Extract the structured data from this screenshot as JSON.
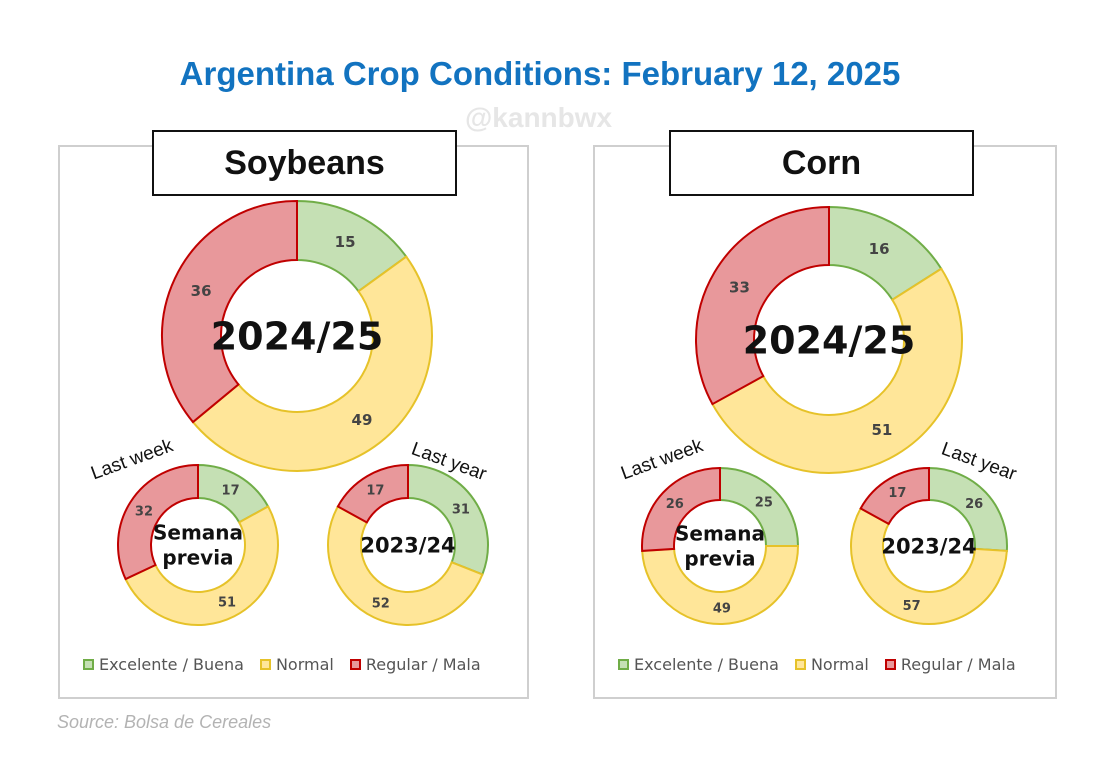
{
  "title": "Argentina Crop Conditions: February 12, 2025",
  "watermark": "@kannbwx",
  "source": "Source: Bolsa de Cereales",
  "colors": {
    "excellent_fill": "#c5e0b4",
    "excellent_stroke": "#70ad47",
    "normal_fill": "#ffe699",
    "normal_stroke": "#e6c229",
    "poor_fill": "#e8989b",
    "poor_stroke": "#c00000"
  },
  "legend": [
    "Excelente / Buena",
    "Normal",
    "Regular / Mala"
  ],
  "panels": {
    "soybeans": {
      "title": "Soybeans"
    },
    "corn": {
      "title": "Corn"
    }
  },
  "chart_data": [
    {
      "type": "pie",
      "crop": "Soybeans",
      "center_label": "2024/25",
      "categories": [
        "Excelente / Buena",
        "Normal",
        "Regular / Mala"
      ],
      "values": [
        15,
        49,
        36
      ]
    },
    {
      "type": "pie",
      "crop": "Soybeans",
      "center_label": [
        "Semana",
        "previa"
      ],
      "side_label": "Last week",
      "categories": [
        "Excelente / Buena",
        "Normal",
        "Regular / Mala"
      ],
      "values": [
        17,
        51,
        32
      ]
    },
    {
      "type": "pie",
      "crop": "Soybeans",
      "center_label": "2023/24",
      "side_label": "Last year",
      "categories": [
        "Excelente / Buena",
        "Normal",
        "Regular / Mala"
      ],
      "values": [
        31,
        52,
        17
      ]
    },
    {
      "type": "pie",
      "crop": "Corn",
      "center_label": "2024/25",
      "categories": [
        "Excelente / Buena",
        "Normal",
        "Regular / Mala"
      ],
      "values": [
        16,
        51,
        33
      ]
    },
    {
      "type": "pie",
      "crop": "Corn",
      "center_label": [
        "Semana",
        "previa"
      ],
      "side_label": "Last week",
      "categories": [
        "Excelente / Buena",
        "Normal",
        "Regular / Mala"
      ],
      "values": [
        25,
        49,
        26
      ]
    },
    {
      "type": "pie",
      "crop": "Corn",
      "center_label": "2023/24",
      "side_label": "Last year",
      "categories": [
        "Excelente / Buena",
        "Normal",
        "Regular / Mala"
      ],
      "values": [
        26,
        57,
        17
      ]
    }
  ]
}
